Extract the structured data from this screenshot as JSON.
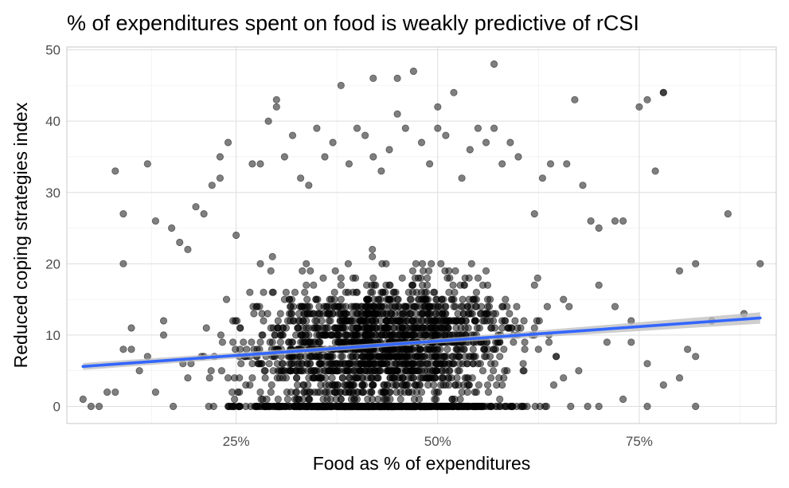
{
  "chart_data": {
    "type": "scatter",
    "title": "% of expenditures spent on food is weakly predictive of rCSI",
    "xlabel": "Food as % of expenditures",
    "ylabel": "Reduced coping strategies index",
    "xlim": [
      0.04,
      0.92
    ],
    "ylim": [
      -2.4,
      50.4
    ],
    "x_ticks": [
      0.25,
      0.5,
      0.75
    ],
    "x_tick_labels": [
      "25%",
      "50%",
      "75%"
    ],
    "y_ticks": [
      0,
      10,
      20,
      30,
      40,
      50
    ],
    "y_tick_labels": [
      "0",
      "10",
      "20",
      "30",
      "40",
      "50"
    ],
    "grid": true,
    "legend": "none",
    "point_color": "#000000",
    "point_opacity": 0.5,
    "trend_line": {
      "method": "linear",
      "color": "#3366ff",
      "band_color": "#bebebe",
      "x": [
        0.06,
        0.9
      ],
      "y": [
        5.6,
        12.4
      ],
      "ci_halfwidth": [
        0.5,
        0.8
      ]
    },
    "points": [
      [
        0.1,
        33
      ],
      [
        0.11,
        27
      ],
      [
        0.11,
        20
      ],
      [
        0.12,
        11
      ],
      [
        0.14,
        34
      ],
      [
        0.15,
        26
      ],
      [
        0.16,
        10
      ],
      [
        0.17,
        25
      ],
      [
        0.18,
        23
      ],
      [
        0.19,
        22
      ],
      [
        0.2,
        28
      ],
      [
        0.21,
        27
      ],
      [
        0.22,
        31
      ],
      [
        0.23,
        35
      ],
      [
        0.23,
        32
      ],
      [
        0.24,
        37
      ],
      [
        0.25,
        24
      ],
      [
        0.27,
        34
      ],
      [
        0.28,
        34
      ],
      [
        0.29,
        40
      ],
      [
        0.3,
        42
      ],
      [
        0.3,
        43
      ],
      [
        0.31,
        35
      ],
      [
        0.32,
        38
      ],
      [
        0.33,
        32
      ],
      [
        0.34,
        31
      ],
      [
        0.35,
        39
      ],
      [
        0.36,
        35
      ],
      [
        0.37,
        37
      ],
      [
        0.38,
        45
      ],
      [
        0.39,
        34
      ],
      [
        0.4,
        39
      ],
      [
        0.41,
        38
      ],
      [
        0.42,
        35
      ],
      [
        0.42,
        46
      ],
      [
        0.43,
        33
      ],
      [
        0.44,
        36
      ],
      [
        0.45,
        41
      ],
      [
        0.45,
        46
      ],
      [
        0.46,
        39
      ],
      [
        0.47,
        47
      ],
      [
        0.48,
        37
      ],
      [
        0.49,
        34
      ],
      [
        0.5,
        42
      ],
      [
        0.5,
        39
      ],
      [
        0.51,
        38
      ],
      [
        0.52,
        44
      ],
      [
        0.53,
        32
      ],
      [
        0.54,
        36
      ],
      [
        0.55,
        39
      ],
      [
        0.56,
        37
      ],
      [
        0.57,
        48
      ],
      [
        0.57,
        39
      ],
      [
        0.58,
        34
      ],
      [
        0.59,
        37
      ],
      [
        0.6,
        35
      ],
      [
        0.62,
        27
      ],
      [
        0.63,
        32
      ],
      [
        0.64,
        34
      ],
      [
        0.66,
        34
      ],
      [
        0.67,
        43
      ],
      [
        0.68,
        31
      ],
      [
        0.69,
        26
      ],
      [
        0.7,
        25
      ],
      [
        0.72,
        26
      ],
      [
        0.73,
        26
      ],
      [
        0.75,
        42
      ],
      [
        0.76,
        43
      ],
      [
        0.77,
        33
      ],
      [
        0.78,
        44
      ],
      [
        0.78,
        44
      ],
      [
        0.8,
        19
      ],
      [
        0.82,
        20
      ],
      [
        0.86,
        27
      ],
      [
        0.9,
        20
      ],
      [
        0.88,
        13
      ],
      [
        0.84,
        12
      ],
      [
        0.81,
        8
      ],
      [
        0.82,
        7
      ],
      [
        0.8,
        4
      ],
      [
        0.78,
        3
      ],
      [
        0.76,
        6
      ],
      [
        0.74,
        9
      ],
      [
        0.72,
        14
      ],
      [
        0.06,
        1
      ],
      [
        0.07,
        0
      ],
      [
        0.08,
        0
      ],
      [
        0.09,
        2
      ],
      [
        0.1,
        2
      ],
      [
        0.11,
        8
      ],
      [
        0.12,
        8
      ],
      [
        0.13,
        5
      ],
      [
        0.14,
        7
      ],
      [
        0.15,
        2
      ],
      [
        0.16,
        12
      ],
      [
        0.82,
        0
      ],
      [
        0.76,
        0
      ],
      [
        0.73,
        1
      ],
      [
        0.7,
        0
      ],
      [
        0.7,
        17
      ],
      [
        0.71,
        9
      ],
      [
        0.74,
        12
      ]
    ]
  }
}
